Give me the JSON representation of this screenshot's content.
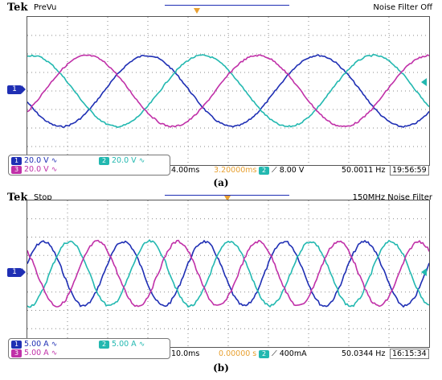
{
  "colors": {
    "ch1": "#1f2fb4",
    "ch2": "#22b8b0",
    "ch3": "#c030a8",
    "trigger": "#e8a030"
  },
  "panels": [
    {
      "brand": "Tek",
      "mode": "PreVu",
      "header_right": "Noise Filter Off",
      "ch1_marker": "1",
      "footer": {
        "ch1_label": "1",
        "ch1_scale": "20.0 V",
        "ch2_label": "2",
        "ch2_scale": "20.0 V",
        "ch3_label": "3",
        "ch3_scale": "20.0 V",
        "timebase": "4.00ms",
        "position": "3.20000ms",
        "trig_label": "2",
        "trig_level": "8.00 V",
        "frequency": "50.0011 Hz",
        "clock": "19:56:59"
      },
      "caption": "(a)",
      "waves": {
        "cycles": 2.35,
        "amp_ch1": 0.24,
        "amp_ch2": 0.24,
        "amp_ch3": 0.24
      }
    },
    {
      "brand": "Tek",
      "mode": "Stop",
      "header_right": "150MHz  Noise Filter",
      "ch1_marker": "1",
      "footer": {
        "ch1_label": "1",
        "ch1_scale": "5.00 A",
        "ch2_label": "2",
        "ch2_scale": "5.00 A",
        "ch3_label": "3",
        "ch3_scale": "5.00 A",
        "timebase": "10.0ms",
        "position": "0.00000 s",
        "trig_label": "2",
        "trig_level": "400mA",
        "frequency": "50.0344 Hz",
        "clock": "16:15:34"
      },
      "caption": "(b)",
      "waves": {
        "cycles": 5.0,
        "amp_ch1": 0.22,
        "amp_ch2": 0.22,
        "amp_ch3": 0.22
      }
    }
  ]
}
